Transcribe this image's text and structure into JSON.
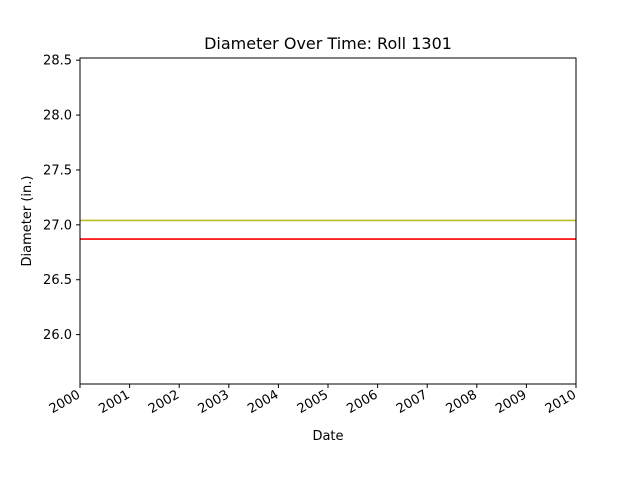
{
  "chart_data": {
    "type": "line",
    "title": "Diameter Over Time: Roll 1301",
    "xlabel": "Date",
    "ylabel": "Diameter (in.)",
    "xlim": [
      "2000",
      "2010"
    ],
    "ylim": [
      25.55,
      28.52
    ],
    "x_ticks": [
      "2000",
      "2001",
      "2002",
      "2003",
      "2004",
      "2005",
      "2006",
      "2007",
      "2008",
      "2009",
      "2010"
    ],
    "y_ticks": [
      "26.0",
      "26.5",
      "27.0",
      "27.5",
      "28.0",
      "28.5"
    ],
    "grid": false,
    "series": [
      {
        "x": [
          "2000",
          "2010"
        ],
        "values": [
          27.04,
          27.04
        ],
        "color": "#bcbd22"
      },
      {
        "x": [
          "2000",
          "2010"
        ],
        "values": [
          26.87,
          26.87
        ],
        "color": "#ff0000"
      }
    ]
  }
}
